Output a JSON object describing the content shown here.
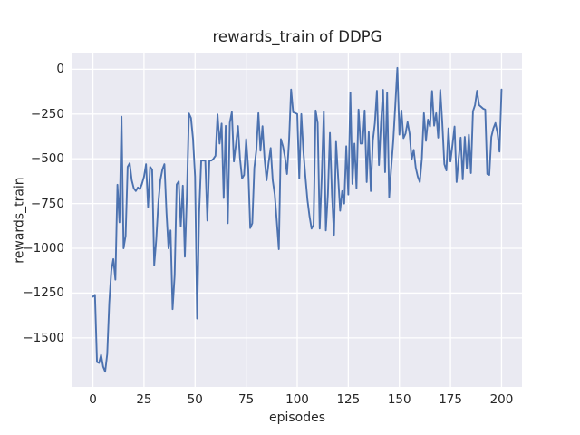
{
  "figure": {
    "title": "rewards_train of DDPG",
    "xlabel": "episodes",
    "ylabel": "rewards_train"
  },
  "colors": {
    "figure_background": "#ffffff",
    "axes_background": "#eaeaf2",
    "grid": "#ffffff",
    "line": "#4c72b0",
    "text": "#262626"
  },
  "chart_data": {
    "type": "line",
    "title": "rewards_train of DDPG",
    "xlabel": "episodes",
    "ylabel": "rewards_train",
    "legend": "none",
    "grid": true,
    "xlim": [
      -10,
      210
    ],
    "ylim": [
      -1774,
      93
    ],
    "x_ticks": [
      0,
      25,
      50,
      75,
      100,
      125,
      150,
      175,
      200
    ],
    "x_tick_labels": [
      "0",
      "25",
      "50",
      "75",
      "100",
      "125",
      "150",
      "175",
      "200"
    ],
    "y_ticks": [
      0,
      -250,
      -500,
      -750,
      -1000,
      -1250,
      -1500
    ],
    "y_tick_labels": [
      "0",
      "−250",
      "−500",
      "−750",
      "−1000",
      "−1250",
      "−1500"
    ],
    "x_start": 0,
    "x_step": 1,
    "series": [
      {
        "name": "rewards_train",
        "color": "#4c72b0",
        "values": [
          -1270,
          -1260,
          -1635,
          -1640,
          -1595,
          -1660,
          -1689,
          -1590,
          -1305,
          -1125,
          -1060,
          -1175,
          -645,
          -855,
          -265,
          -1000,
          -930,
          -545,
          -525,
          -620,
          -665,
          -680,
          -660,
          -670,
          -640,
          -600,
          -530,
          -770,
          -545,
          -560,
          -1095,
          -950,
          -750,
          -620,
          -560,
          -530,
          -800,
          -1000,
          -900,
          -1340,
          -1150,
          -643,
          -626,
          -879,
          -650,
          -1047,
          -702,
          -247,
          -272,
          -390,
          -600,
          -1392,
          -800,
          -510,
          -510,
          -510,
          -845,
          -510,
          -510,
          -500,
          -483,
          -252,
          -415,
          -303,
          -719,
          -316,
          -860,
          -298,
          -239,
          -515,
          -420,
          -317,
          -500,
          -610,
          -590,
          -390,
          -550,
          -887,
          -860,
          -550,
          -450,
          -245,
          -455,
          -318,
          -500,
          -620,
          -520,
          -440,
          -620,
          -700,
          -850,
          -1005,
          -390,
          -430,
          -490,
          -585,
          -400,
          -113,
          -240,
          -245,
          -250,
          -610,
          -250,
          -455,
          -600,
          -730,
          -820,
          -890,
          -870,
          -230,
          -300,
          -890,
          -600,
          -235,
          -900,
          -700,
          -355,
          -700,
          -925,
          -405,
          -600,
          -790,
          -680,
          -750,
          -430,
          -700,
          -130,
          -640,
          -415,
          -665,
          -225,
          -415,
          -415,
          -230,
          -630,
          -350,
          -680,
          -400,
          -300,
          -120,
          -535,
          -300,
          -115,
          -575,
          -130,
          -715,
          -550,
          -400,
          -200,
          8,
          -365,
          -230,
          -385,
          -360,
          -295,
          -360,
          -505,
          -450,
          -550,
          -600,
          -630,
          -500,
          -245,
          -400,
          -281,
          -320,
          -121,
          -315,
          -245,
          -382,
          -115,
          -300,
          -530,
          -565,
          -330,
          -515,
          -420,
          -320,
          -630,
          -500,
          -382,
          -615,
          -378,
          -555,
          -365,
          -580,
          -235,
          -200,
          -120,
          -200,
          -210,
          -220,
          -225,
          -585,
          -590,
          -378,
          -330,
          -300,
          -355,
          -460,
          -113
        ]
      }
    ]
  }
}
